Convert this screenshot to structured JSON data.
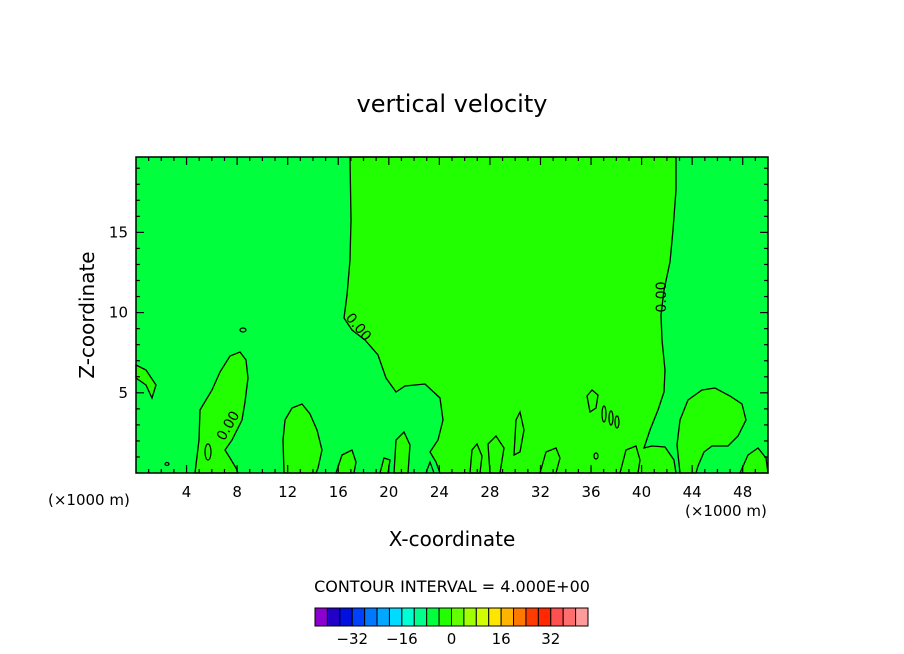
{
  "chart_data": {
    "type": "contour",
    "title": "vertical velocity",
    "xlabel": "X-coordinate",
    "ylabel": "Z-coordinate",
    "x_unit_left": "(×1000 m)",
    "x_unit_right": "(×1000 m)",
    "xlim": [
      0,
      50
    ],
    "ylim": [
      0,
      19.7
    ],
    "x_ticks": [
      4,
      8,
      12,
      16,
      20,
      24,
      28,
      32,
      36,
      40,
      44,
      48
    ],
    "y_ticks": [
      5,
      10,
      15
    ],
    "contour_interval_text": "CONTOUR INTERVAL = 4.000E+00",
    "contour_labels": [
      {
        "text": "0.00",
        "x": 17.5,
        "z": 9.3
      },
      {
        "text": "0.00",
        "x": 41.8,
        "z": 11.1
      },
      {
        "text": "0.00",
        "x": 7.7,
        "z": 2.8
      }
    ],
    "regions": [
      {
        "value": "-4 to 0",
        "color": "#00ff3c",
        "where": "background, left band x<17 and right band x>42"
      },
      {
        "value": "0 to 4",
        "color": "#22ff00",
        "where": "central updraft region x≈17–42"
      }
    ],
    "colorbar": {
      "colors": [
        "#8c00d0",
        "#2200c8",
        "#0010e0",
        "#0040ff",
        "#0078ff",
        "#00a8ff",
        "#00dcff",
        "#00ffd2",
        "#00ff8c",
        "#00ff3c",
        "#22ff00",
        "#64ff00",
        "#a0ff00",
        "#d2ff00",
        "#ffe600",
        "#ffb400",
        "#ff7800",
        "#ff3c00",
        "#ff2800",
        "#ff5050",
        "#ff6e6e",
        "#ff9a9a"
      ],
      "tick_labels": [
        "-32",
        "-16",
        "0",
        "16",
        "32"
      ],
      "tick_values": [
        -32,
        -16,
        0,
        16,
        32
      ]
    }
  }
}
